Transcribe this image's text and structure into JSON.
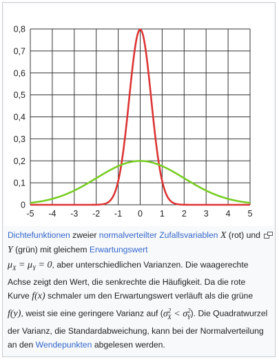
{
  "chart_data": {
    "type": "line",
    "x_ticks": [
      "-5",
      "-4",
      "-3",
      "-2",
      "-1",
      "0",
      "1",
      "2",
      "3",
      "4",
      "5"
    ],
    "y_ticks": [
      "0",
      "0,1",
      "0,2",
      "0,3",
      "0,4",
      "0,5",
      "0,6",
      "0,7",
      "0,8"
    ],
    "xlim": [
      -5,
      5
    ],
    "ylim": [
      0,
      0.8
    ],
    "grid": true,
    "series": [
      {
        "color": "#dd3333",
        "mean": 0,
        "sd": 0.5,
        "peak": 0.798
      },
      {
        "color": "#77cc22",
        "mean": 0,
        "sd": 2,
        "peak": 0.199
      }
    ]
  },
  "caption": {
    "link_dichte": "Dichtefunktionen",
    "t1": " zweier ",
    "link_normal": "normalverteilter",
    "t2": " ",
    "link_zufall": "Zufallsvariablen",
    "t3": " ",
    "mX": "X",
    "t4": " (rot) und ",
    "mY": "Y",
    "t5": " (grün) mit gleichem ",
    "link_erw": "Erwartungswert",
    "math_mu": "μ",
    "sub_X": "X",
    "math_eq1": " = ",
    "sub_Y": "Y",
    "math_eq2": " = 0",
    "t6": ", aber unterschiedlichen Varianzen. Die waagerechte Achse zeigt den Wert, die senkrechte die Häufigkeit. Da die rote Kurve ",
    "math_fx": "f(x)",
    "t7": " schmaler um den Erwartungswert verläuft als die grüne ",
    "math_fy": "f(y)",
    "t8": ", weist sie eine geringere Varianz auf (",
    "math_sigma": "σ",
    "sup_2": "2",
    "math_lt": " < ",
    "t9": "). Die Quadratwurzel der Varianz, die Standardabweichung, kann bei der Normalverteilung an den ",
    "link_wende": "Wendepunkten",
    "t10": " abgelesen werden."
  },
  "icons": {
    "enlarge": "enlarge-icon"
  }
}
